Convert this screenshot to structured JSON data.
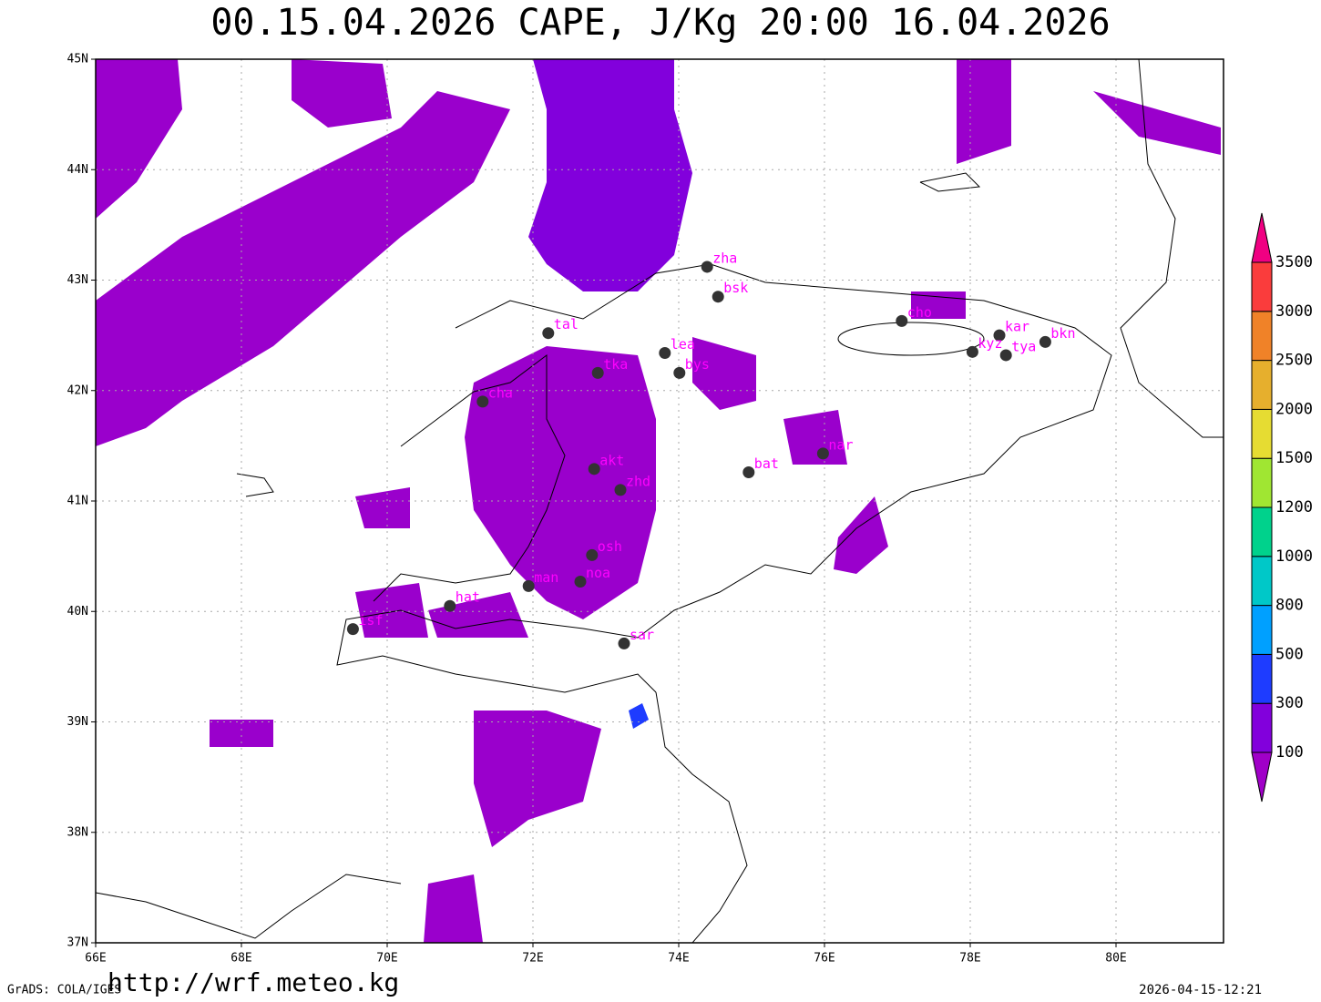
{
  "title": "00.15.04.2026 CAPE, J/Kg 20:00 16.04.2026",
  "map": {
    "xlim": [
      66,
      81.475
    ],
    "ylim": [
      37,
      45
    ],
    "xticks": [
      {
        "value": 66,
        "label": "66E"
      },
      {
        "value": 68,
        "label": "68E"
      },
      {
        "value": 70,
        "label": "70E"
      },
      {
        "value": 72,
        "label": "72E"
      },
      {
        "value": 74,
        "label": "74E"
      },
      {
        "value": 76,
        "label": "76E"
      },
      {
        "value": 78,
        "label": "78E"
      },
      {
        "value": 80,
        "label": "80E"
      }
    ],
    "yticks": [
      {
        "value": 37,
        "label": "37N"
      },
      {
        "value": 38,
        "label": "38N"
      },
      {
        "value": 39,
        "label": "39N"
      },
      {
        "value": 40,
        "label": "40N"
      },
      {
        "value": 41,
        "label": "41N"
      },
      {
        "value": 42,
        "label": "42N"
      },
      {
        "value": 43,
        "label": "43N"
      },
      {
        "value": 44,
        "label": "44N"
      },
      {
        "value": 45,
        "label": "45N"
      }
    ],
    "grid": true,
    "cities": [
      {
        "name": "zha",
        "lon": 74.39,
        "lat": 43.12
      },
      {
        "name": "bsk",
        "lon": 74.54,
        "lat": 42.85
      },
      {
        "name": "tal",
        "lon": 72.21,
        "lat": 42.52
      },
      {
        "name": "lea",
        "lon": 73.81,
        "lat": 42.34
      },
      {
        "name": "bys",
        "lon": 74.01,
        "lat": 42.16
      },
      {
        "name": "tka",
        "lon": 72.89,
        "lat": 42.16
      },
      {
        "name": "cha",
        "lon": 71.31,
        "lat": 41.9
      },
      {
        "name": "cho",
        "lon": 77.06,
        "lat": 42.63
      },
      {
        "name": "kar",
        "lon": 78.4,
        "lat": 42.5
      },
      {
        "name": "kyz",
        "lon": 78.03,
        "lat": 42.35
      },
      {
        "name": "tya",
        "lon": 78.49,
        "lat": 42.32
      },
      {
        "name": "bkn",
        "lon": 79.03,
        "lat": 42.44
      },
      {
        "name": "nar",
        "lon": 75.98,
        "lat": 41.43
      },
      {
        "name": "bat",
        "lon": 74.96,
        "lat": 41.26
      },
      {
        "name": "akt",
        "lon": 72.84,
        "lat": 41.29
      },
      {
        "name": "zhd",
        "lon": 73.2,
        "lat": 41.1
      },
      {
        "name": "osh",
        "lon": 72.81,
        "lat": 40.51
      },
      {
        "name": "man",
        "lon": 71.94,
        "lat": 40.23
      },
      {
        "name": "noa",
        "lon": 72.65,
        "lat": 40.27
      },
      {
        "name": "hat",
        "lon": 70.86,
        "lat": 40.05
      },
      {
        "name": "isf",
        "lon": 69.53,
        "lat": 39.84
      },
      {
        "name": "sar",
        "lon": 73.25,
        "lat": 39.71
      }
    ]
  },
  "colorbar": {
    "levels": [
      100,
      300,
      500,
      800,
      1000,
      1200,
      1500,
      2000,
      2500,
      3000,
      3500
    ],
    "colors": [
      "#a000c8",
      "#8200dc",
      "#1e3cff",
      "#00a0ff",
      "#00c8c8",
      "#00d28c",
      "#a0e632",
      "#e6dc32",
      "#e6af2d",
      "#f08228",
      "#fa3c3c",
      "#f00082"
    ]
  },
  "footer": {
    "left": "GrADS: COLA/IGES",
    "url": "http://wrf.meteo.kg",
    "timestamp": "2026-04-15-12:21"
  }
}
